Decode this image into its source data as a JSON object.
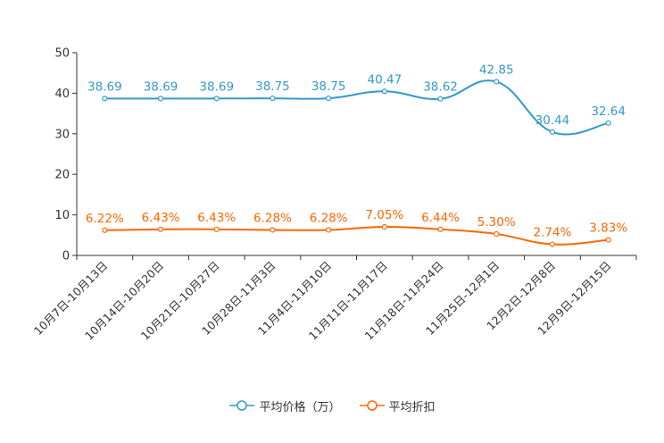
{
  "chart_data": {
    "type": "line",
    "categories": [
      "10月7日-10月13日",
      "10月14日-10月20日",
      "10月21日-10月27日",
      "10月28日-11月3日",
      "11月4日-11月10日",
      "11月11日-11月17日",
      "11月18日-11月24日",
      "11月25日-12月1日",
      "12月2日-12月8日",
      "12月9日-12月15日"
    ],
    "yticks": [
      "0",
      "10",
      "20",
      "30",
      "40",
      "50"
    ],
    "ylim": [
      0,
      50
    ],
    "series": [
      {
        "name": "平均价格（万）",
        "color": "#3399cc",
        "values": [
          38.69,
          38.69,
          38.69,
          38.75,
          38.75,
          40.47,
          38.62,
          42.85,
          30.44,
          32.64
        ],
        "labels": [
          "38.69",
          "38.69",
          "38.69",
          "38.75",
          "38.75",
          "40.47",
          "38.62",
          "42.85",
          "30.44",
          "32.64"
        ]
      },
      {
        "name": "平均折扣",
        "color": "#ff6600",
        "values": [
          6.22,
          6.43,
          6.43,
          6.28,
          6.28,
          7.05,
          6.44,
          5.3,
          2.74,
          3.83
        ],
        "labels": [
          "6.22%",
          "6.43%",
          "6.43%",
          "6.28%",
          "6.28%",
          "7.05%",
          "6.44%",
          "5.30%",
          "2.74%",
          "3.83%"
        ]
      }
    ],
    "title": "",
    "xlabel": "",
    "ylabel": "",
    "legend_position": "bottom"
  }
}
